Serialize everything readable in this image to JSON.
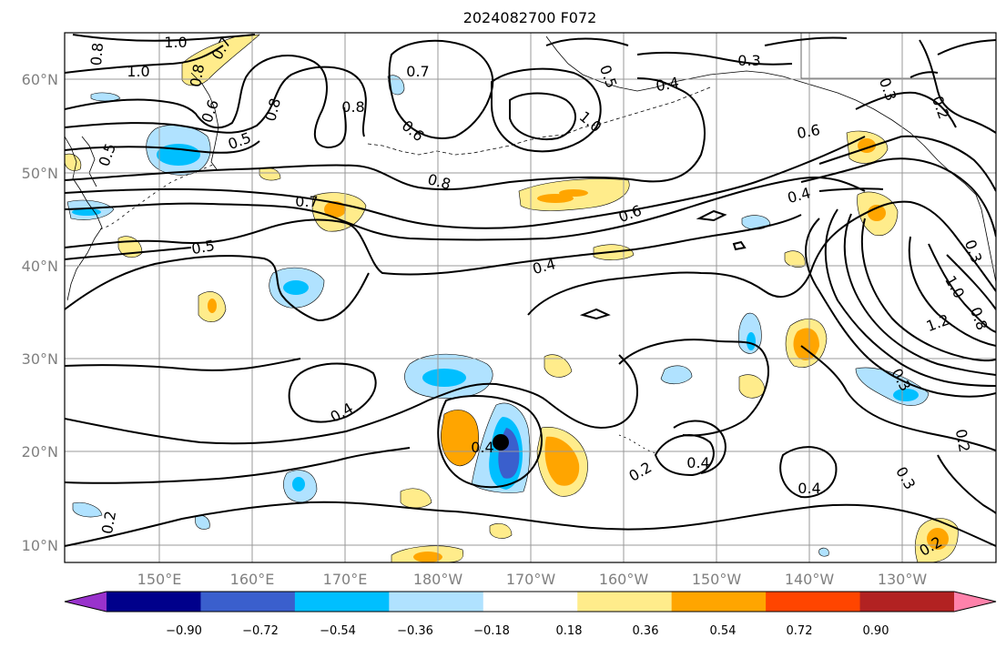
{
  "title": "2024082700 F072",
  "map": {
    "lat_labels": [
      "60°N",
      "50°N",
      "40°N",
      "30°N",
      "20°N",
      "10°N"
    ],
    "lon_labels": [
      "150°E",
      "160°E",
      "170°E",
      "180°W",
      "170°W",
      "160°W",
      "150°W",
      "140°W",
      "130°W"
    ],
    "gridlines": true
  },
  "contour_labels": [
    "1.0",
    "0.8",
    "1.0",
    "0.7",
    "0.8",
    "0.6",
    "0.5",
    "0.5",
    "0.8",
    "0.8",
    "0.7",
    "0.6",
    "0.8",
    "1.0",
    "0.5",
    "0.4",
    "0.3",
    "0.3",
    "0.2",
    "0.6",
    "0.4",
    "0.7",
    "0.5",
    "0.6",
    "0.4",
    "1.0",
    "1.2",
    "0.8",
    "0.3",
    "0.4",
    "0.4",
    "0.2",
    "0.4",
    "0.4",
    "0.3",
    "0.3",
    "0.2",
    "0.2"
  ],
  "storm_marker": "cyclone-center",
  "colorbar": {
    "ticks": [
      "−0.90",
      "−0.72",
      "−0.54",
      "−0.36",
      "−0.18",
      "0.18",
      "0.36",
      "0.54",
      "0.72",
      "0.90"
    ],
    "colors": [
      "#9932CC",
      "#00008B",
      "#3A5FCD",
      "#00BFFF",
      "#B0E2FF",
      "#FFFFFF",
      "#FFEC8B",
      "#FFA500",
      "#FF4500",
      "#B22222",
      "#FF82AB"
    ]
  }
}
